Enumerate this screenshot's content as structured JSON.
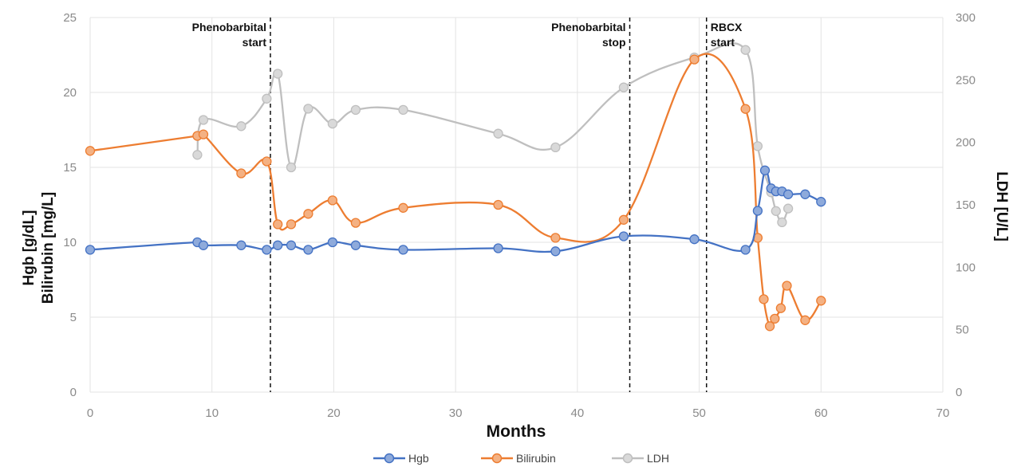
{
  "chart_data": {
    "type": "line",
    "xlabel": "Months",
    "ylabel_left": [
      "Hgb [g/dL]",
      "Bilirubin [mg/L]"
    ],
    "ylabel_right": "LDH [U/L]",
    "xlim": [
      0,
      70
    ],
    "ylim_left": [
      0,
      25
    ],
    "ylim_right": [
      0,
      300
    ],
    "x_ticks": [
      "0",
      "10",
      "20",
      "30",
      "40",
      "50",
      "60",
      "70"
    ],
    "y_ticks_left": [
      "0",
      "5",
      "10",
      "15",
      "20",
      "25"
    ],
    "y_ticks_right": [
      "0",
      "50",
      "100",
      "150",
      "200",
      "250",
      "300"
    ],
    "grid": true,
    "legend_position": "bottom",
    "colors": {
      "Hgb": "#4472c4",
      "Bilirubin": "#ed7d31",
      "LDH": "#bfbfbf",
      "marker_Hgb": "#8eaadb",
      "marker_Bilirubin": "#f4b183",
      "marker_LDH": "#d9d9d9"
    },
    "annotations": [
      {
        "x": 14.8,
        "lines": [
          "Phenobarbital",
          "start"
        ]
      },
      {
        "x": 44.3,
        "lines": [
          "Phenobarbital",
          "stop"
        ]
      },
      {
        "x": 50.6,
        "lines": [
          "RBCX",
          "start"
        ]
      }
    ],
    "series": [
      {
        "name": "Hgb",
        "axis": "left",
        "x": [
          0,
          8.8,
          9.3,
          12.4,
          14.5,
          15.4,
          16.5,
          17.9,
          19.9,
          21.8,
          25.7,
          33.5,
          38.2,
          43.8,
          49.6,
          53.8,
          54.8,
          55.4,
          55.9,
          56.3,
          56.8,
          57.3,
          58.7,
          60
        ],
        "y": [
          9.5,
          10.0,
          9.8,
          9.8,
          9.5,
          9.8,
          9.8,
          9.5,
          10.0,
          9.8,
          9.5,
          9.6,
          9.4,
          10.4,
          10.2,
          9.5,
          12.1,
          14.8,
          13.6,
          13.4,
          13.4,
          13.2,
          13.2,
          12.7
        ]
      },
      {
        "name": "Bilirubin",
        "axis": "left",
        "x": [
          0,
          8.8,
          9.3,
          12.4,
          14.5,
          15.4,
          16.5,
          17.9,
          19.9,
          21.8,
          25.7,
          33.5,
          38.2,
          43.8,
          49.6,
          53.8,
          54.8,
          55.3,
          55.8,
          56.2,
          56.7,
          57.2,
          58.7,
          60
        ],
        "y": [
          16.1,
          17.1,
          17.2,
          14.6,
          15.4,
          11.2,
          11.2,
          11.9,
          12.8,
          11.3,
          12.3,
          12.5,
          10.3,
          11.5,
          22.2,
          18.9,
          10.3,
          6.2,
          4.4,
          4.9,
          5.6,
          7.1,
          4.8,
          6.1
        ]
      },
      {
        "name": "LDH",
        "axis": "right",
        "x": [
          8.8,
          9.3,
          12.4,
          14.5,
          15.4,
          16.5,
          17.9,
          19.9,
          21.8,
          25.7,
          33.5,
          38.2,
          43.8,
          49.6,
          53.8,
          54.8,
          55.9,
          56.3,
          56.8,
          57.3
        ],
        "y": [
          190,
          218,
          213,
          235,
          255,
          180,
          227,
          215,
          226,
          226,
          207,
          196,
          244,
          268,
          274,
          197,
          160,
          145,
          136,
          147
        ]
      }
    ]
  }
}
